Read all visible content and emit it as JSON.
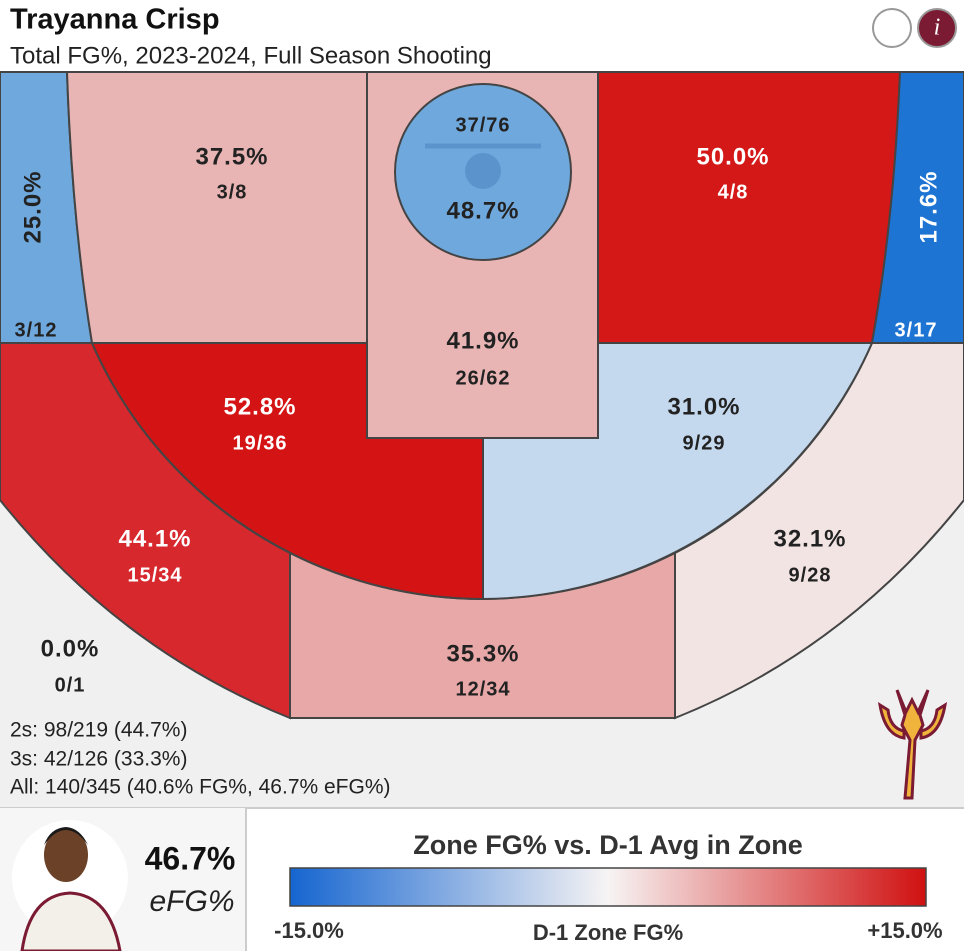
{
  "header": {
    "title": "Trayanna Crisp",
    "subtitle": "Total FG%, 2023-2024, Full Season Shooting",
    "info_icon": "i"
  },
  "zones": [
    {
      "pct": "25.0%",
      "made": "3/12"
    },
    {
      "pct": "37.5%",
      "made": "3/8"
    },
    {
      "pct": "48.7%",
      "made": "37/76"
    },
    {
      "pct": "50.0%",
      "made": "4/8"
    },
    {
      "pct": "17.6%",
      "made": "3/17"
    },
    {
      "pct": "41.9%",
      "made": "26/62"
    },
    {
      "pct": "52.8%",
      "made": "19/36"
    },
    {
      "pct": "31.0%",
      "made": "9/29"
    },
    {
      "pct": "44.1%",
      "made": "15/34"
    },
    {
      "pct": "32.1%",
      "made": "9/28"
    },
    {
      "pct": "0.0%",
      "made": "0/1"
    },
    {
      "pct": "35.3%",
      "made": "12/34"
    }
  ],
  "summary": [
    "2s: 98/219 (44.7%)",
    "3s: 42/126 (33.3%)",
    "All: 140/345 (40.6% FG%, 46.7% eFG%)"
  ],
  "player": {
    "efg": "46.7%",
    "efg_label": "eFG%"
  },
  "legend": {
    "title": "Zone FG% vs. D-1 Avg in Zone",
    "min": "-15.0%",
    "center": "D-1 Zone FG%",
    "max": "+15.0%"
  }
}
